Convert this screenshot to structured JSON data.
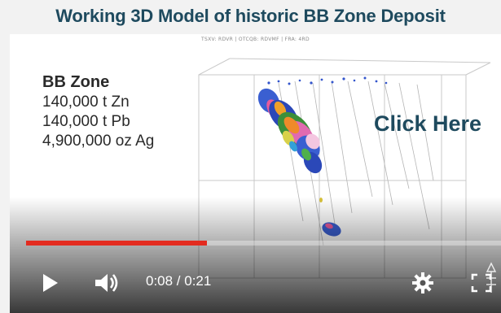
{
  "page": {
    "title": "Working 3D Model of historic BB Zone Deposit"
  },
  "video": {
    "scene_caption": "TSXV: RDVR | OTCQB: RDVMF | FRA: 4RD",
    "info": {
      "zone": "BB Zone",
      "lines": [
        "140,000 t Zn",
        "140,000 t Pb",
        "4,900,000 oz Ag"
      ]
    },
    "click_here": "Click Here",
    "progress_fraction": 0.381,
    "time_display": "0:08 / 0:21",
    "colors": {
      "title": "#1e4a5e",
      "progress": "#e32b1f",
      "click_here": "#1e4a5e"
    }
  },
  "controls": {
    "play_icon": "play-icon",
    "volume_icon": "volume-icon",
    "settings_icon": "gear-icon",
    "fullscreen_icon": "fullscreen-icon"
  }
}
